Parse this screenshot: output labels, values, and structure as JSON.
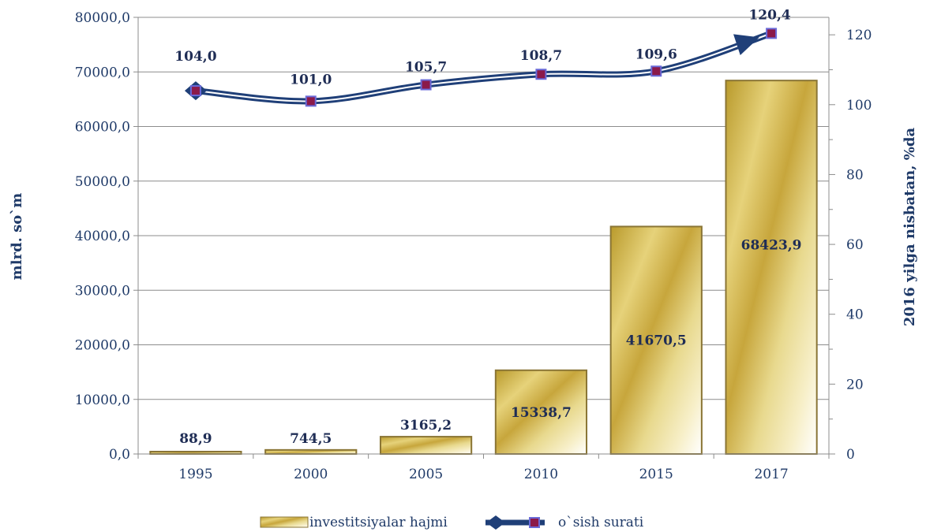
{
  "chart_data": {
    "type": "bar",
    "categories": [
      "1995",
      "2000",
      "2005",
      "2010",
      "2015",
      "2017"
    ],
    "series": [
      {
        "name": "investitsiyalar hajmi",
        "type": "bar",
        "axis": "left",
        "values": [
          88.9,
          744.5,
          3165.2,
          15338.7,
          41670.5,
          68423.9
        ],
        "labels": [
          "88,9",
          "744,5",
          "3165,2",
          "15338,7",
          "41670,5",
          "68423,9"
        ]
      },
      {
        "name": "o`sish surati",
        "type": "line",
        "axis": "right",
        "values": [
          104.0,
          101.0,
          105.7,
          108.7,
          109.6,
          120.4
        ],
        "labels": [
          "104,0",
          "101,0",
          "105,7",
          "108,7",
          "109,6",
          "120,4"
        ]
      }
    ],
    "ylabel": "mlrd. so`m",
    "y2label": "2016 yilga nisbatan, %da",
    "ylim": [
      0,
      80000
    ],
    "y2lim": [
      0,
      125
    ],
    "yticks": [
      "0,0",
      "10000,0",
      "20000,0",
      "30000,0",
      "40000,0",
      "50000,0",
      "60000,0",
      "70000,0",
      "80000,0"
    ],
    "y2ticks": [
      "0",
      "20",
      "40",
      "60",
      "80",
      "100",
      "120"
    ],
    "grid": true,
    "legend": "bottom",
    "colors": {
      "bar_fill": "#c8a637",
      "bar_light": "#fff8dc",
      "bar_border": "#8a7535",
      "line": "#1f3f78",
      "marker": "#8b1a4a",
      "text": "#1f3a68"
    }
  }
}
